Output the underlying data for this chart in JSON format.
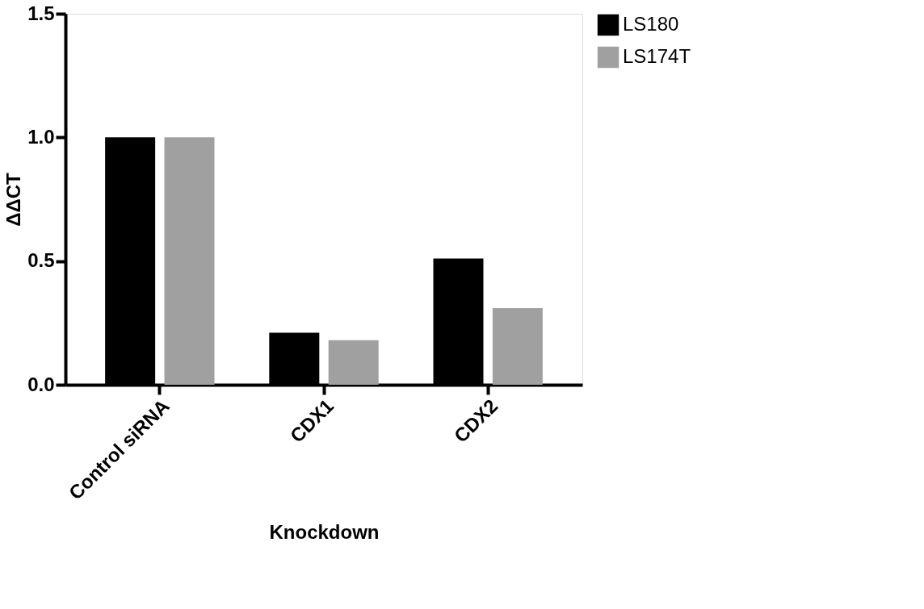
{
  "chart_data": {
    "type": "bar",
    "xlabel": "Knockdown",
    "ylabel": "ΔΔCT",
    "categories": [
      "Control siRNA",
      "CDX1",
      "CDX2"
    ],
    "series": [
      {
        "name": "LS180",
        "color": "#000000",
        "values": [
          1.0,
          0.21,
          0.51
        ]
      },
      {
        "name": "LS174T",
        "color": "#a0a0a0",
        "values": [
          1.0,
          0.18,
          0.31
        ]
      }
    ],
    "ylim": [
      0,
      1.5
    ],
    "yticks": [
      {
        "value": 0,
        "label": "0.0"
      },
      {
        "value": 0.5,
        "label": "0.5"
      },
      {
        "value": 1,
        "label": "1.0"
      },
      {
        "value": 1.5,
        "label": "1.5"
      }
    ],
    "grid": false,
    "legend": "top right"
  }
}
